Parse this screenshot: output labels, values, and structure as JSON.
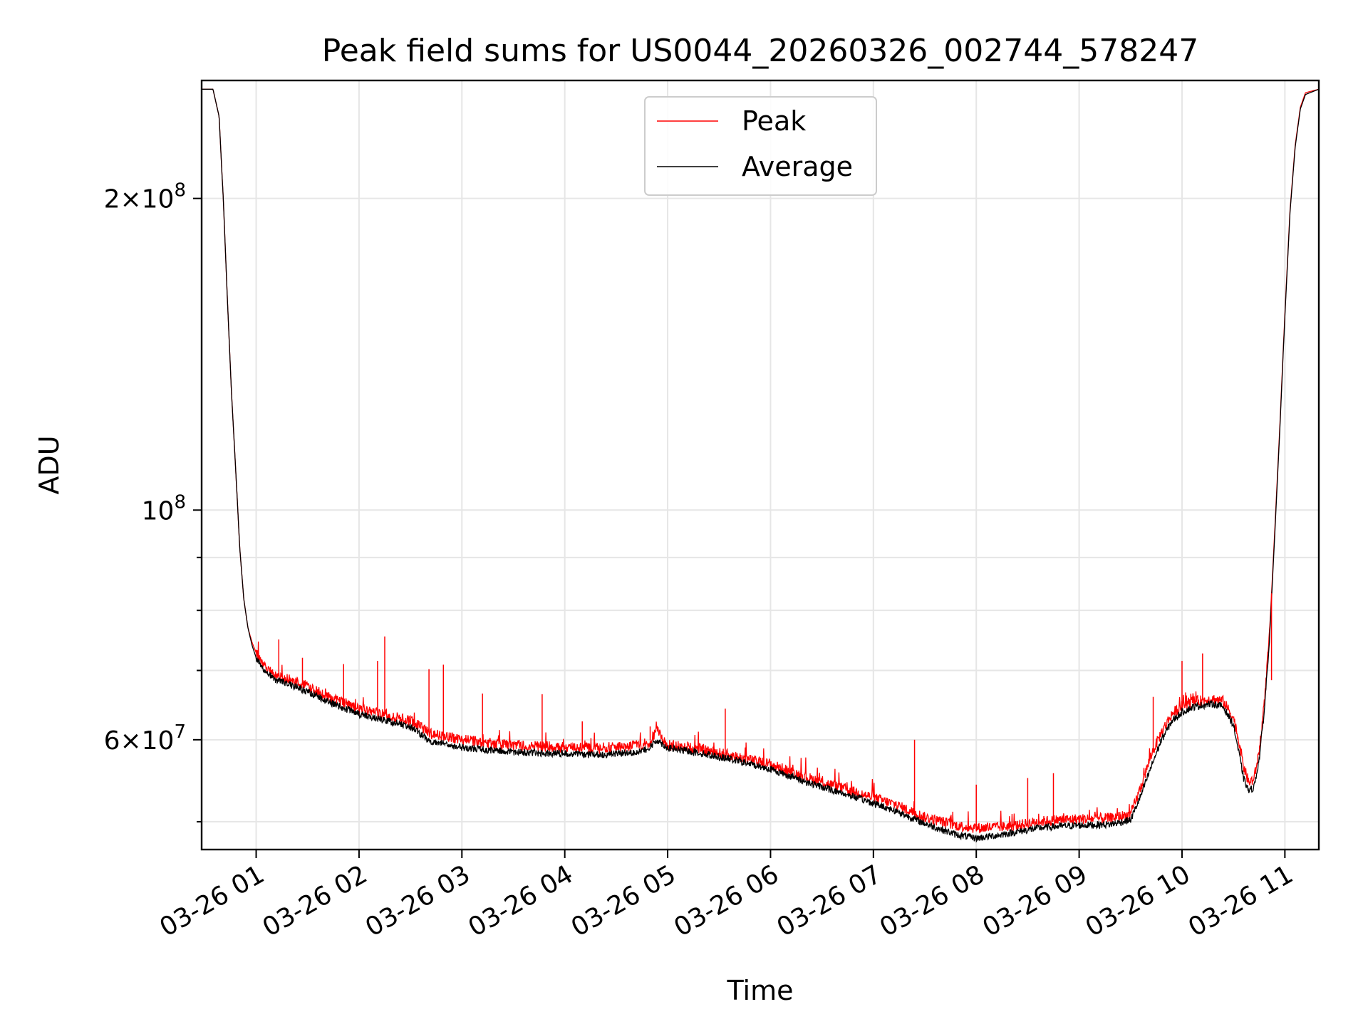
{
  "chart_data": {
    "type": "line",
    "title": "Peak field sums for US0044_20260326_002744_578247",
    "xlabel": "Time",
    "ylabel": "ADU",
    "y_scale": "log",
    "ylim": [
      47000000,
      260000000
    ],
    "xlim_hours": [
      0.47,
      11.33
    ],
    "grid": true,
    "legend_position": "upper center",
    "x_ticks": [
      {
        "hour": 1,
        "label": "03-26 01"
      },
      {
        "hour": 2,
        "label": "03-26 02"
      },
      {
        "hour": 3,
        "label": "03-26 03"
      },
      {
        "hour": 4,
        "label": "03-26 04"
      },
      {
        "hour": 5,
        "label": "03-26 05"
      },
      {
        "hour": 6,
        "label": "03-26 06"
      },
      {
        "hour": 7,
        "label": "03-26 07"
      },
      {
        "hour": 8,
        "label": "03-26 08"
      },
      {
        "hour": 9,
        "label": "03-26 09"
      },
      {
        "hour": 10,
        "label": "03-26 10"
      },
      {
        "hour": 11,
        "label": "03-26 11"
      }
    ],
    "y_major_ticks": [
      {
        "value": 60000000,
        "mantissa": "6",
        "base": "10",
        "exp": "7"
      },
      {
        "value": 100000000,
        "mantissa": "",
        "base": "10",
        "exp": "8"
      },
      {
        "value": 200000000,
        "mantissa": "2",
        "base": "10",
        "exp": "8"
      }
    ],
    "y_minor_ticks": [
      50000000,
      70000000,
      80000000,
      90000000,
      300000000
    ],
    "series": [
      {
        "name": "Peak",
        "color": "#ff0000",
        "x_hours": [
          0.47,
          0.58,
          0.64,
          0.68,
          0.72,
          0.76,
          0.8,
          0.84,
          0.88,
          0.92,
          0.96,
          1.0,
          1.05,
          1.1,
          1.2,
          1.3,
          1.5,
          1.7,
          2.0,
          2.3,
          2.5,
          2.7,
          3.0,
          3.3,
          3.6,
          4.0,
          4.3,
          4.6,
          4.8,
          4.9,
          5.0,
          5.3,
          5.6,
          6.0,
          6.4,
          6.8,
          7.2,
          7.5,
          7.8,
          8.0,
          8.2,
          8.4,
          8.6,
          8.8,
          9.0,
          9.3,
          9.5,
          9.6,
          9.7,
          9.8,
          9.9,
          10.0,
          10.1,
          10.2,
          10.3,
          10.4,
          10.5,
          10.55,
          10.6,
          10.65,
          10.7,
          10.75,
          10.8,
          10.85,
          10.9,
          10.95,
          11.0,
          11.05,
          11.1,
          11.15,
          11.2,
          11.33
        ],
        "values": [
          255000000,
          255000000,
          240000000,
          200000000,
          160000000,
          130000000,
          110000000,
          92000000,
          82000000,
          77000000,
          74500000,
          72800000,
          71500000,
          70300000,
          69200000,
          68700000,
          67500000,
          66000000,
          64200000,
          63300000,
          62600000,
          60800000,
          60000000,
          59500000,
          59200000,
          59000000,
          58900000,
          59100000,
          59400000,
          61200000,
          59300000,
          58800000,
          58000000,
          56800000,
          55000000,
          53500000,
          52000000,
          50500000,
          49600000,
          49300000,
          49400000,
          49600000,
          50000000,
          50200000,
          50300000,
          50400000,
          50800000,
          54000000,
          58000000,
          61000000,
          63500000,
          64700000,
          65300000,
          65500000,
          65700000,
          65400000,
          63000000,
          60000000,
          56500000,
          54500000,
          55000000,
          58500000,
          65000000,
          76000000,
          95000000,
          120000000,
          155000000,
          195000000,
          225000000,
          245000000,
          253000000,
          255000000
        ]
      },
      {
        "name": "Average",
        "color": "#000000",
        "x_hours": [
          0.47,
          0.58,
          0.64,
          0.68,
          0.72,
          0.76,
          0.8,
          0.84,
          0.88,
          0.92,
          0.96,
          1.0,
          1.05,
          1.1,
          1.2,
          1.3,
          1.5,
          1.7,
          2.0,
          2.3,
          2.5,
          2.7,
          3.0,
          3.3,
          3.6,
          4.0,
          4.3,
          4.6,
          4.8,
          4.9,
          5.0,
          5.3,
          5.6,
          6.0,
          6.4,
          6.8,
          7.2,
          7.5,
          7.8,
          8.0,
          8.2,
          8.4,
          8.6,
          8.8,
          9.0,
          9.3,
          9.5,
          9.6,
          9.7,
          9.8,
          9.9,
          10.0,
          10.1,
          10.2,
          10.3,
          10.4,
          10.5,
          10.55,
          10.6,
          10.65,
          10.7,
          10.75,
          10.8,
          10.85,
          10.9,
          10.95,
          11.0,
          11.05,
          11.1,
          11.15,
          11.2,
          11.33
        ],
        "values": [
          255000000,
          255000000,
          240000000,
          200000000,
          160000000,
          130000000,
          110000000,
          92000000,
          82000000,
          77000000,
          74000000,
          72000000,
          70800000,
          69600000,
          68500000,
          68000000,
          66800000,
          65300000,
          63500000,
          62500000,
          61700000,
          59800000,
          59000000,
          58600000,
          58300000,
          58200000,
          58000000,
          58300000,
          58600000,
          60000000,
          58900000,
          58300000,
          57500000,
          56200000,
          54400000,
          52900000,
          51300000,
          49800000,
          48600000,
          48200000,
          48500000,
          48900000,
          49300000,
          49500000,
          49600000,
          49700000,
          50200000,
          53000000,
          56500000,
          60000000,
          62500000,
          63800000,
          64500000,
          64800000,
          65000000,
          64600000,
          62000000,
          58500000,
          55000000,
          53500000,
          54000000,
          57500000,
          64000000,
          75000000,
          94000000,
          119000000,
          154000000,
          194000000,
          224000000,
          244000000,
          252000000,
          255000000
        ]
      }
    ],
    "spikes": [
      {
        "hour": 1.22,
        "value": 75000000
      },
      {
        "hour": 1.45,
        "value": 72000000
      },
      {
        "hour": 1.85,
        "value": 71000000
      },
      {
        "hour": 2.18,
        "value": 71500000
      },
      {
        "hour": 2.25,
        "value": 75500000
      },
      {
        "hour": 2.68,
        "value": 70200000
      },
      {
        "hour": 2.82,
        "value": 70900000
      },
      {
        "hour": 3.2,
        "value": 66500000
      },
      {
        "hour": 3.78,
        "value": 66400000
      },
      {
        "hour": 4.17,
        "value": 62500000
      },
      {
        "hour": 4.83,
        "value": 61800000
      },
      {
        "hour": 5.56,
        "value": 64300000
      },
      {
        "hour": 7.4,
        "value": 60000000
      },
      {
        "hour": 8.0,
        "value": 54300000
      },
      {
        "hour": 8.5,
        "value": 55100000
      },
      {
        "hour": 8.75,
        "value": 55700000
      },
      {
        "hour": 9.72,
        "value": 66000000
      },
      {
        "hour": 10.0,
        "value": 71500000
      },
      {
        "hour": 10.2,
        "value": 72700000
      },
      {
        "hour": 10.87,
        "value": 68500000
      }
    ]
  },
  "legend": {
    "items": [
      {
        "label": "Peak",
        "color": "#ff0000"
      },
      {
        "label": "Average",
        "color": "#000000"
      }
    ]
  }
}
